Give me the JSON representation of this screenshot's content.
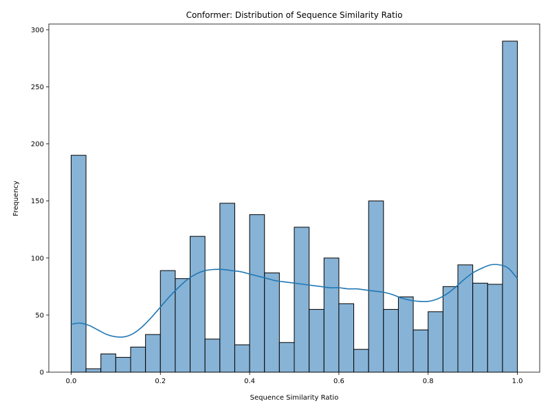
{
  "chart_data": {
    "type": "bar",
    "title": "Conformer: Distribution of Sequence Similarity Ratio",
    "xlabel": "Sequence Similarity Ratio",
    "ylabel": "Frequency",
    "xlim": [
      -0.05,
      1.05
    ],
    "ylim": [
      0,
      305
    ],
    "xticks": [
      "0.0",
      "0.2",
      "0.4",
      "0.6",
      "0.8",
      "1.0"
    ],
    "yticks": [
      "0",
      "50",
      "100",
      "150",
      "200",
      "250",
      "300"
    ],
    "bin_range": [
      0.0,
      1.0
    ],
    "bins": 30,
    "values": [
      190,
      3,
      16,
      13,
      22,
      33,
      89,
      82,
      119,
      29,
      148,
      24,
      138,
      87,
      26,
      127,
      55,
      100,
      60,
      20,
      150,
      55,
      66,
      37,
      53,
      75,
      94,
      78,
      77,
      290
    ],
    "kde": {
      "x": [
        0.0,
        0.02,
        0.04,
        0.06,
        0.08,
        0.1,
        0.12,
        0.14,
        0.16,
        0.18,
        0.2,
        0.22,
        0.24,
        0.26,
        0.28,
        0.3,
        0.32,
        0.34,
        0.36,
        0.38,
        0.4,
        0.42,
        0.44,
        0.46,
        0.48,
        0.5,
        0.52,
        0.54,
        0.56,
        0.58,
        0.6,
        0.62,
        0.64,
        0.66,
        0.68,
        0.7,
        0.72,
        0.74,
        0.76,
        0.78,
        0.8,
        0.82,
        0.84,
        0.86,
        0.88,
        0.9,
        0.92,
        0.94,
        0.96,
        0.98,
        1.0
      ],
      "y": [
        42,
        43,
        41,
        37,
        33,
        31,
        31,
        34,
        40,
        48,
        57,
        66,
        74,
        81,
        86,
        89,
        90,
        90,
        89,
        88,
        86,
        84,
        82,
        80,
        79,
        78,
        77,
        76,
        75,
        74,
        74,
        73,
        73,
        72,
        71,
        70,
        68,
        65,
        63,
        62,
        62,
        64,
        68,
        74,
        81,
        87,
        91,
        94,
        94,
        91,
        82
      ]
    }
  }
}
